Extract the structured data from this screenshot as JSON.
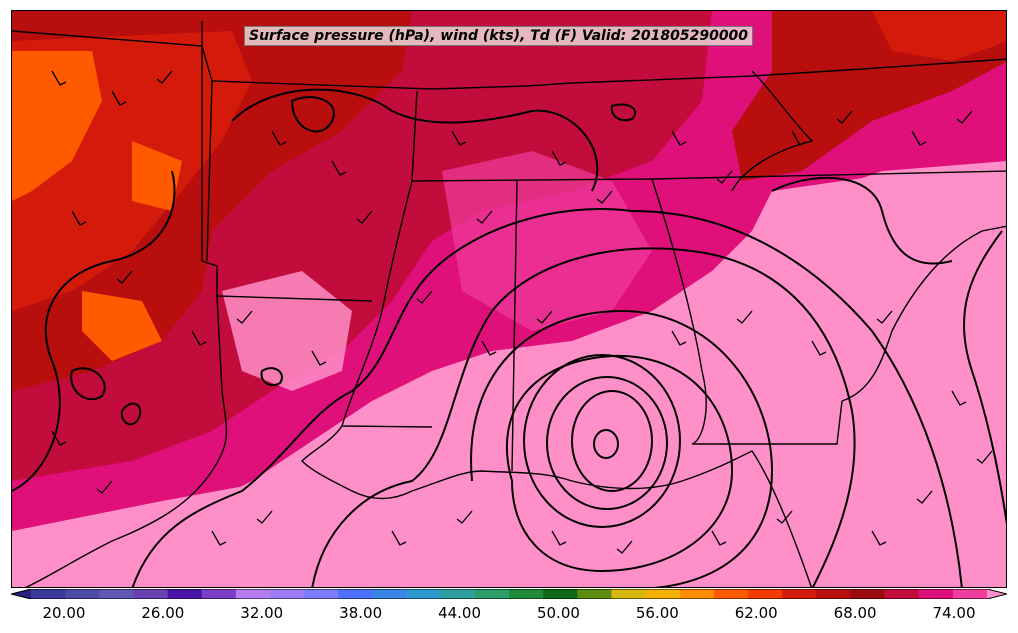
{
  "title": "Surface pressure (hPa), wind (kts), Td (F) Valid: 201805290000",
  "colorbar": {
    "colors": [
      "#2a1f7a",
      "#3a3a9a",
      "#4d4aa6",
      "#5e58b3",
      "#6a41b0",
      "#4a14a8",
      "#7b3ec8",
      "#b57cf0",
      "#9c7cf5",
      "#7c7cff",
      "#4f6fff",
      "#3a86e8",
      "#2e9ad0",
      "#2e9e9e",
      "#2d9c6a",
      "#1f8a3a",
      "#0e6a14",
      "#5c8c10",
      "#d4b80e",
      "#f4b200",
      "#ff8c00",
      "#ff5a00",
      "#f03a00",
      "#d41a0a",
      "#b80e0e",
      "#9a0c10",
      "#c20c3c",
      "#e0107a",
      "#f03c9c",
      "#ff8fc8"
    ],
    "ticks": [
      "20.00",
      "26.00",
      "32.00",
      "38.00",
      "44.00",
      "50.00",
      "56.00",
      "62.00",
      "68.00",
      "74.00"
    ],
    "min": 17,
    "max": 77,
    "extend": "both"
  },
  "map": {
    "region": "southeastern United States and northern Gulf of Mexico",
    "field": "dew point (F) filled",
    "background": "#ff8fc8"
  }
}
